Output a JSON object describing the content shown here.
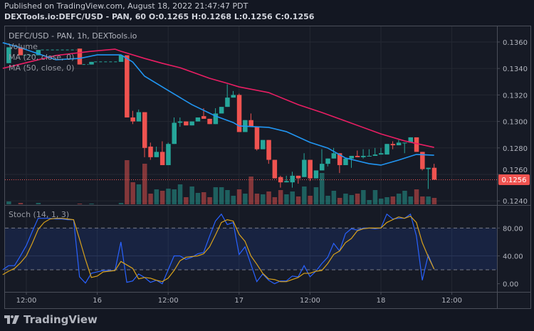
{
  "header": {
    "published": "Published on TradingView.com, August 18, 2022 21:47:47 PDT",
    "symbol": "DEXTools.io:DEFC/USD - PAN, 60",
    "ohlc": "O:0.1265 H:0.1268 L:0.1256 C:0.1256"
  },
  "legend": {
    "title": "DEFC/USD - PAN, 1h, DEXTools.io",
    "volume": "Volume",
    "ma20": "MA (20, close, 0)",
    "ma50": "MA (50, close, 0)",
    "stoch": "Stoch (14, 1, 3)"
  },
  "colors": {
    "up": "#26a69a",
    "down": "#ef5350",
    "ma20": "#2196f3",
    "ma50": "#e91e63",
    "stoch_k": "#2962ff",
    "stoch_d": "#d9a21b",
    "background": "#131722"
  },
  "price_axis": {
    "ticks": [
      "0.1360",
      "0.1340",
      "0.1320",
      "0.1300",
      "0.1280",
      "0.1260",
      "0.1240"
    ],
    "last_price": "0.1256"
  },
  "stoch_axis": {
    "ticks": [
      "80.00",
      "40.00",
      "0.00"
    ],
    "upper_band": 80,
    "lower_band": 20
  },
  "time_axis": {
    "ticks": [
      "12:00",
      "16",
      "12:00",
      "17",
      "12:00",
      "18",
      "12:00"
    ]
  },
  "footer": {
    "brand": "TradingView",
    "icon": "tradingview-logo-icon"
  },
  "chart_data": {
    "type": "candlestick",
    "interval": "1h",
    "candles": [
      {
        "t": "15 09:00",
        "o": 0.1344,
        "h": 0.1356,
        "l": 0.1344,
        "c": 0.1356,
        "v": 4
      },
      {
        "t": "15 11:00",
        "o": 0.1356,
        "h": 0.1356,
        "l": 0.135,
        "c": 0.135,
        "v": 2
      },
      {
        "t": "15 14:00",
        "o": 0.135,
        "h": 0.1354,
        "l": 0.135,
        "c": 0.1354,
        "v": 2
      },
      {
        "t": "15 21:00",
        "o": 0.1355,
        "h": 0.1355,
        "l": 0.1343,
        "c": 0.1343,
        "v": 1
      },
      {
        "t": "15 23:00",
        "o": 0.1343,
        "h": 0.1345,
        "l": 0.1343,
        "c": 0.1345,
        "v": 1
      },
      {
        "t": "16 04:00",
        "o": 0.1345,
        "h": 0.135,
        "l": 0.1345,
        "c": 0.135,
        "v": 2
      },
      {
        "t": "16 05:00",
        "o": 0.135,
        "h": 0.135,
        "l": 0.1303,
        "c": 0.1303,
        "v": 62
      },
      {
        "t": "16 06:00",
        "o": 0.1303,
        "h": 0.1308,
        "l": 0.1298,
        "c": 0.13,
        "v": 31
      },
      {
        "t": "16 07:00",
        "o": 0.13,
        "h": 0.1309,
        "l": 0.13,
        "c": 0.1307,
        "v": 28
      },
      {
        "t": "16 08:00",
        "o": 0.1307,
        "h": 0.1307,
        "l": 0.1273,
        "c": 0.128,
        "v": 57
      },
      {
        "t": "16 09:00",
        "o": 0.1281,
        "h": 0.1284,
        "l": 0.1271,
        "c": 0.1273,
        "v": 15
      },
      {
        "t": "16 10:00",
        "o": 0.1273,
        "h": 0.1281,
        "l": 0.1273,
        "c": 0.1277,
        "v": 21
      },
      {
        "t": "16 11:00",
        "o": 0.1277,
        "h": 0.1285,
        "l": 0.1267,
        "c": 0.1267,
        "v": 19
      },
      {
        "t": "16 12:00",
        "o": 0.1267,
        "h": 0.1284,
        "l": 0.1267,
        "c": 0.1283,
        "v": 22
      },
      {
        "t": "16 13:00",
        "o": 0.1283,
        "h": 0.1303,
        "l": 0.1283,
        "c": 0.1299,
        "v": 21
      },
      {
        "t": "16 14:00",
        "o": 0.1299,
        "h": 0.1303,
        "l": 0.1296,
        "c": 0.13,
        "v": 28
      },
      {
        "t": "16 15:00",
        "o": 0.13,
        "h": 0.13,
        "l": 0.1297,
        "c": 0.1297,
        "v": 10
      },
      {
        "t": "16 16:00",
        "o": 0.1297,
        "h": 0.13,
        "l": 0.1297,
        "c": 0.13,
        "v": 25
      },
      {
        "t": "16 17:00",
        "o": 0.13,
        "h": 0.1303,
        "l": 0.13,
        "c": 0.1303,
        "v": 16
      },
      {
        "t": "16 18:00",
        "o": 0.1304,
        "h": 0.131,
        "l": 0.1302,
        "c": 0.1302,
        "v": 17
      },
      {
        "t": "16 19:00",
        "o": 0.1302,
        "h": 0.1302,
        "l": 0.1298,
        "c": 0.1298,
        "v": 10
      },
      {
        "t": "16 20:00",
        "o": 0.1298,
        "h": 0.131,
        "l": 0.1298,
        "c": 0.1306,
        "v": 24
      },
      {
        "t": "16 21:00",
        "o": 0.1306,
        "h": 0.1311,
        "l": 0.1306,
        "c": 0.1311,
        "v": 24
      },
      {
        "t": "16 22:00",
        "o": 0.1311,
        "h": 0.1328,
        "l": 0.1311,
        "c": 0.1318,
        "v": 20
      },
      {
        "t": "16 23:00",
        "o": 0.1318,
        "h": 0.1323,
        "l": 0.1318,
        "c": 0.132,
        "v": 12
      },
      {
        "t": "17 00:00",
        "o": 0.132,
        "h": 0.1321,
        "l": 0.1292,
        "c": 0.1292,
        "v": 21
      },
      {
        "t": "17 01:00",
        "o": 0.1292,
        "h": 0.1301,
        "l": 0.1292,
        "c": 0.1301,
        "v": 15
      },
      {
        "t": "17 02:00",
        "o": 0.1301,
        "h": 0.1306,
        "l": 0.1296,
        "c": 0.1296,
        "v": 39
      },
      {
        "t": "17 03:00",
        "o": 0.1296,
        "h": 0.1296,
        "l": 0.1278,
        "c": 0.1279,
        "v": 15
      },
      {
        "t": "17 04:00",
        "o": 0.1279,
        "h": 0.1286,
        "l": 0.1279,
        "c": 0.1286,
        "v": 14
      },
      {
        "t": "17 05:00",
        "o": 0.1286,
        "h": 0.1286,
        "l": 0.1268,
        "c": 0.1271,
        "v": 18
      },
      {
        "t": "17 06:00",
        "o": 0.1271,
        "h": 0.1271,
        "l": 0.1257,
        "c": 0.1257,
        "v": 10
      },
      {
        "t": "17 07:00",
        "o": 0.1258,
        "h": 0.1259,
        "l": 0.125,
        "c": 0.1254,
        "v": 20
      },
      {
        "t": "17 08:00",
        "o": 0.1254,
        "h": 0.1259,
        "l": 0.1254,
        "c": 0.1255,
        "v": 14
      },
      {
        "t": "17 09:00",
        "o": 0.1254,
        "h": 0.1262,
        "l": 0.125,
        "c": 0.1259,
        "v": 18
      },
      {
        "t": "17 10:00",
        "o": 0.1259,
        "h": 0.1259,
        "l": 0.1253,
        "c": 0.1257,
        "v": 11
      },
      {
        "t": "17 11:00",
        "o": 0.1258,
        "h": 0.1276,
        "l": 0.1258,
        "c": 0.1271,
        "v": 25
      },
      {
        "t": "17 12:00",
        "o": 0.1271,
        "h": 0.1271,
        "l": 0.1255,
        "c": 0.1257,
        "v": 12
      },
      {
        "t": "17 13:00",
        "o": 0.1257,
        "h": 0.1263,
        "l": 0.1257,
        "c": 0.1263,
        "v": 24
      },
      {
        "t": "17 14:00",
        "o": 0.1263,
        "h": 0.1279,
        "l": 0.1263,
        "c": 0.1268,
        "v": 44
      },
      {
        "t": "17 15:00",
        "o": 0.1268,
        "h": 0.1272,
        "l": 0.1266,
        "c": 0.1272,
        "v": 12
      },
      {
        "t": "17 16:00",
        "o": 0.1272,
        "h": 0.128,
        "l": 0.1272,
        "c": 0.1276,
        "v": 19
      },
      {
        "t": "17 17:00",
        "o": 0.1276,
        "h": 0.1276,
        "l": 0.1261,
        "c": 0.1267,
        "v": 9
      },
      {
        "t": "17 18:00",
        "o": 0.1267,
        "h": 0.1272,
        "l": 0.1267,
        "c": 0.1272,
        "v": 15
      },
      {
        "t": "17 19:00",
        "o": 0.1272,
        "h": 0.1274,
        "l": 0.1265,
        "c": 0.1274,
        "v": 13
      },
      {
        "t": "17 20:00",
        "o": 0.1274,
        "h": 0.1278,
        "l": 0.1273,
        "c": 0.1273,
        "v": 15
      },
      {
        "t": "17 21:00",
        "o": 0.1273,
        "h": 0.1279,
        "l": 0.1272,
        "c": 0.1274,
        "v": 20
      },
      {
        "t": "17 22:00",
        "o": 0.1274,
        "h": 0.1279,
        "l": 0.1274,
        "c": 0.1274,
        "v": 6
      },
      {
        "t": "17 23:00",
        "o": 0.1274,
        "h": 0.128,
        "l": 0.1274,
        "c": 0.1275,
        "v": 20
      },
      {
        "t": "18 00:00",
        "o": 0.1275,
        "h": 0.128,
        "l": 0.1275,
        "c": 0.1276,
        "v": 8
      },
      {
        "t": "18 01:00",
        "o": 0.1275,
        "h": 0.1283,
        "l": 0.1275,
        "c": 0.1283,
        "v": 10
      },
      {
        "t": "18 02:00",
        "o": 0.1283,
        "h": 0.1285,
        "l": 0.1279,
        "c": 0.1282,
        "v": 11
      },
      {
        "t": "18 03:00",
        "o": 0.1282,
        "h": 0.1286,
        "l": 0.1282,
        "c": 0.1284,
        "v": 15
      },
      {
        "t": "18 04:00",
        "o": 0.1284,
        "h": 0.1284,
        "l": 0.1276,
        "c": 0.1284,
        "v": 19
      },
      {
        "t": "18 05:00",
        "o": 0.1284,
        "h": 0.1288,
        "l": 0.1284,
        "c": 0.1288,
        "v": 11
      },
      {
        "t": "18 06:00",
        "o": 0.1288,
        "h": 0.1288,
        "l": 0.1277,
        "c": 0.1277,
        "v": 21
      },
      {
        "t": "18 07:00",
        "o": 0.1277,
        "h": 0.1277,
        "l": 0.1263,
        "c": 0.1264,
        "v": 11
      },
      {
        "t": "18 08:00",
        "o": 0.1264,
        "h": 0.1265,
        "l": 0.1249,
        "c": 0.1265,
        "v": 11
      },
      {
        "t": "18 09:00",
        "o": 0.1265,
        "h": 0.1268,
        "l": 0.1256,
        "c": 0.1256,
        "v": 9
      }
    ],
    "ma20": [
      {
        "t": "15 08:00",
        "v": 0.13595
      },
      {
        "t": "15 11:00",
        "v": 0.13557
      },
      {
        "t": "15 17:00",
        "v": 0.13466
      },
      {
        "t": "15 21:00",
        "v": 0.13476
      },
      {
        "t": "16 00:00",
        "v": 0.13503
      },
      {
        "t": "16 04:00",
        "v": 0.13503
      },
      {
        "t": "16 06:00",
        "v": 0.13449
      },
      {
        "t": "16 08:00",
        "v": 0.13342
      },
      {
        "t": "16 12:00",
        "v": 0.13234
      },
      {
        "t": "16 16:00",
        "v": 0.13127
      },
      {
        "t": "16 20:00",
        "v": 0.13041
      },
      {
        "t": "16 23:00",
        "v": 0.12992
      },
      {
        "t": "17 00:00",
        "v": 0.12966
      },
      {
        "t": "17 05:00",
        "v": 0.12955
      },
      {
        "t": "17 08:00",
        "v": 0.12923
      },
      {
        "t": "17 12:00",
        "v": 0.12842
      },
      {
        "t": "17 15:00",
        "v": 0.12799
      },
      {
        "t": "17 18:00",
        "v": 0.12724
      },
      {
        "t": "17 22:00",
        "v": 0.12681
      },
      {
        "t": "18 00:00",
        "v": 0.1267
      },
      {
        "t": "18 03:00",
        "v": 0.12708
      },
      {
        "t": "18 06:00",
        "v": 0.12751
      },
      {
        "t": "18 09:00",
        "v": 0.12745
      }
    ],
    "ma50": [
      {
        "t": "15 08:00",
        "v": 0.13401
      },
      {
        "t": "15 11:00",
        "v": 0.13433
      },
      {
        "t": "15 17:00",
        "v": 0.13498
      },
      {
        "t": "15 23:00",
        "v": 0.1353
      },
      {
        "t": "16 03:00",
        "v": 0.13546
      },
      {
        "t": "16 04:00",
        "v": 0.1353
      },
      {
        "t": "16 08:00",
        "v": 0.13476
      },
      {
        "t": "16 11:00",
        "v": 0.13439
      },
      {
        "t": "16 14:00",
        "v": 0.13406
      },
      {
        "t": "16 19:00",
        "v": 0.13326
      },
      {
        "t": "16 22:00",
        "v": 0.13288
      },
      {
        "t": "17 00:00",
        "v": 0.13261
      },
      {
        "t": "17 05:00",
        "v": 0.13218
      },
      {
        "t": "17 10:00",
        "v": 0.13127
      },
      {
        "t": "17 14:00",
        "v": 0.13068
      },
      {
        "t": "17 18:00",
        "v": 0.13003
      },
      {
        "t": "18 00:00",
        "v": 0.12906
      },
      {
        "t": "18 04:00",
        "v": 0.12853
      },
      {
        "t": "18 09:00",
        "v": 0.12804
      }
    ],
    "stoch": {
      "start": "15 08:00",
      "k": [
        20,
        26,
        26,
        40,
        55,
        75,
        94,
        94,
        94,
        93,
        93,
        92,
        92,
        10,
        1,
        15,
        17,
        19,
        19,
        19,
        60,
        2,
        4,
        14,
        9,
        2,
        5,
        0,
        20,
        40,
        40,
        35,
        38,
        43,
        45,
        68,
        90,
        100,
        85,
        88,
        42,
        53,
        28,
        3,
        14,
        5,
        0,
        4,
        4,
        11,
        10,
        26,
        10,
        18,
        29,
        38,
        58,
        47,
        72,
        79,
        77,
        80,
        80,
        79,
        80,
        100,
        93,
        94,
        94,
        100,
        69,
        5,
        41,
        21
      ],
      "d": [
        13,
        18,
        22,
        30,
        40,
        58,
        78,
        88,
        93,
        94,
        94,
        93,
        92,
        64,
        35,
        9,
        11,
        17,
        18,
        19,
        32,
        27,
        22,
        7,
        9,
        8,
        5,
        3,
        8,
        19,
        33,
        38,
        39,
        40,
        43,
        53,
        70,
        88,
        92,
        90,
        71,
        61,
        40,
        28,
        15,
        7,
        6,
        3,
        3,
        6,
        9,
        15,
        15,
        18,
        19,
        29,
        42,
        47,
        59,
        65,
        76,
        79,
        80,
        80,
        80,
        88,
        92,
        96,
        94,
        97,
        88,
        59,
        39,
        21
      ]
    },
    "price_range": [
      0.1236,
      0.1366
    ],
    "stoch_range": [
      0,
      100
    ]
  }
}
